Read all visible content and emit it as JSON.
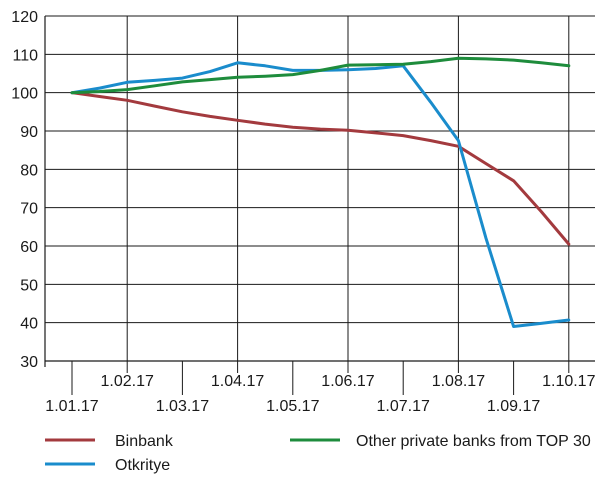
{
  "chart_data": {
    "type": "line",
    "x": [
      "1.01.17",
      "1.02.17",
      "1.03.17",
      "1.04.17",
      "1.05.17",
      "1.06.17",
      "1.07.17",
      "1.08.17",
      "1.09.17",
      "1.10.17"
    ],
    "ylim": [
      30,
      120
    ],
    "yticks": [
      30,
      40,
      50,
      60,
      70,
      80,
      90,
      100,
      110,
      120
    ],
    "grid": true,
    "legend_position": "bottom",
    "series": [
      {
        "name": "Binbank",
        "color": "#a33a3e",
        "points": [
          [
            0,
            100
          ],
          [
            0.5,
            99
          ],
          [
            1,
            98
          ],
          [
            1.5,
            96.5
          ],
          [
            2,
            95
          ],
          [
            2.5,
            93.8
          ],
          [
            3,
            92.8
          ],
          [
            3.5,
            91.8
          ],
          [
            4,
            91
          ],
          [
            4.5,
            90.5
          ],
          [
            5,
            90.2
          ],
          [
            5.5,
            89.5
          ],
          [
            6,
            88.8
          ],
          [
            6.5,
            87.5
          ],
          [
            7,
            86
          ],
          [
            7.5,
            81.5
          ],
          [
            8,
            77
          ],
          [
            8.5,
            69
          ],
          [
            9,
            60.5
          ]
        ]
      },
      {
        "name": "Otkritye",
        "color": "#1a8ccc",
        "points": [
          [
            0,
            100
          ],
          [
            0.5,
            101.2
          ],
          [
            1,
            102.7
          ],
          [
            1.5,
            103.2
          ],
          [
            2,
            103.8
          ],
          [
            2.5,
            105.5
          ],
          [
            3,
            107.8
          ],
          [
            3.5,
            107
          ],
          [
            4,
            105.8
          ],
          [
            4.5,
            105.8
          ],
          [
            5,
            106
          ],
          [
            5.5,
            106.3
          ],
          [
            6,
            107
          ],
          [
            6.5,
            97.5
          ],
          [
            7,
            87.5
          ],
          [
            7.5,
            62
          ],
          [
            8,
            39
          ],
          [
            8.5,
            39.8
          ],
          [
            9,
            40.7
          ]
        ]
      },
      {
        "name": "Other private banks from TOP 30",
        "color": "#1e8c3c",
        "points": [
          [
            0,
            100
          ],
          [
            0.5,
            100.3
          ],
          [
            1,
            100.8
          ],
          [
            1.5,
            101.8
          ],
          [
            2,
            102.8
          ],
          [
            2.5,
            103.4
          ],
          [
            3,
            104
          ],
          [
            3.5,
            104.3
          ],
          [
            4,
            104.7
          ],
          [
            4.5,
            105.8
          ],
          [
            5,
            107.2
          ],
          [
            5.5,
            107.3
          ],
          [
            6,
            107.4
          ],
          [
            6.5,
            108.1
          ],
          [
            7,
            109
          ],
          [
            7.5,
            108.8
          ],
          [
            8,
            108.5
          ],
          [
            8.5,
            107.8
          ],
          [
            9,
            107
          ]
        ]
      }
    ]
  }
}
